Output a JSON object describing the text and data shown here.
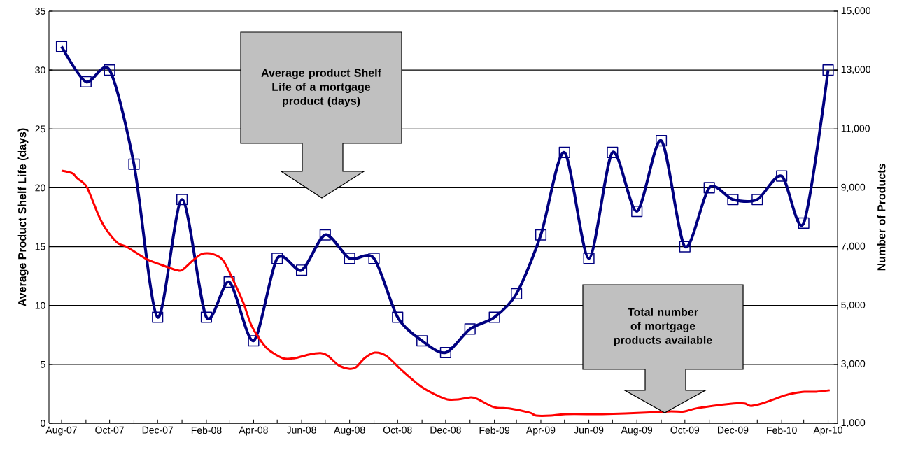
{
  "chart_data": {
    "type": "line",
    "xlabel": null,
    "ylabel": "Average Product Shelf Life (days)",
    "y2label": "Number of Products",
    "xlim": [
      "2007-07-16",
      "2010-04-13"
    ],
    "xticks": [
      {
        "value": "2007-08",
        "label": "Aug-07"
      },
      {
        "value": "2007-09",
        "label": null
      },
      {
        "value": "2007-10",
        "label": "Oct-07"
      },
      {
        "value": "2007-11",
        "label": null
      },
      {
        "value": "2007-12",
        "label": "Dec-07"
      },
      {
        "value": "2008-01",
        "label": null
      },
      {
        "value": "2008-02",
        "label": "Feb-08"
      },
      {
        "value": "2008-03",
        "label": null
      },
      {
        "value": "2008-04",
        "label": "Apr-08"
      },
      {
        "value": "2008-05",
        "label": null
      },
      {
        "value": "2008-06",
        "label": "Jun-08"
      },
      {
        "value": "2008-07",
        "label": null
      },
      {
        "value": "2008-08",
        "label": "Aug-08"
      },
      {
        "value": "2008-09",
        "label": null
      },
      {
        "value": "2008-10",
        "label": "Oct-08"
      },
      {
        "value": "2008-11",
        "label": null
      },
      {
        "value": "2008-12",
        "label": "Dec-08"
      },
      {
        "value": "2009-01",
        "label": null
      },
      {
        "value": "2009-02",
        "label": "Feb-09"
      },
      {
        "value": "2009-03",
        "label": null
      },
      {
        "value": "2009-04",
        "label": "Apr-09"
      },
      {
        "value": "2009-05",
        "label": null
      },
      {
        "value": "2009-06",
        "label": "Jun-09"
      },
      {
        "value": "2009-07",
        "label": null
      },
      {
        "value": "2009-08",
        "label": "Aug-09"
      },
      {
        "value": "2009-09",
        "label": null
      },
      {
        "value": "2009-10",
        "label": "Oct-09"
      },
      {
        "value": "2009-11",
        "label": null
      },
      {
        "value": "2009-12",
        "label": "Dec-09"
      },
      {
        "value": "2010-01",
        "label": null
      },
      {
        "value": "2010-02",
        "label": "Feb-10"
      },
      {
        "value": "2010-03",
        "label": null
      },
      {
        "value": "2010-04",
        "label": "Apr-10"
      }
    ],
    "ylim": [
      0,
      35
    ],
    "yticks": [
      0,
      5,
      10,
      15,
      20,
      25,
      30,
      35
    ],
    "y2lim": [
      1000,
      15000
    ],
    "y2ticks": [
      {
        "value": 1000,
        "label": "1,000"
      },
      {
        "value": 3000,
        "label": "3,000"
      },
      {
        "value": 5000,
        "label": "5,000"
      },
      {
        "value": 7000,
        "label": "7,000"
      },
      {
        "value": 9000,
        "label": "9,000"
      },
      {
        "value": 11000,
        "label": "11,000"
      },
      {
        "value": 13000,
        "label": "13,000"
      },
      {
        "value": 15000,
        "label": "15,000"
      }
    ],
    "grid": "y",
    "series": [
      {
        "color": "#000080",
        "marker": "square",
        "x": [
          "2007-08",
          "2007-09",
          "2007-10",
          "2007-11",
          "2007-12",
          "2008-01",
          "2008-02",
          "2008-03",
          "2008-04",
          "2008-05",
          "2008-06",
          "2008-07",
          "2008-08",
          "2008-09",
          "2008-10",
          "2008-11",
          "2008-12",
          "2009-01",
          "2009-02",
          "2009-03",
          "2009-04",
          "2009-05",
          "2009-06",
          "2009-07",
          "2009-08",
          "2009-09",
          "2009-10",
          "2009-11",
          "2009-12",
          "2010-01",
          "2010-02",
          "2010-03",
          "2010-04"
        ],
        "values": [
          32,
          29,
          30,
          22,
          9,
          19,
          9,
          12,
          7,
          14,
          13,
          16,
          14,
          14,
          9,
          7,
          6,
          8,
          9,
          11,
          16,
          23,
          14,
          23,
          18,
          24,
          15,
          20,
          19,
          19,
          21,
          17,
          30
        ]
      },
      {
        "color": "#ff0000",
        "marker": "none",
        "axis": "y2",
        "x": [
          "2007-08-01",
          "2007-08-15",
          "2007-08-21",
          "2007-09-02",
          "2007-09-17",
          "2007-09-26",
          "2007-10-11",
          "2007-10-23",
          "2007-11-16",
          "2007-12-04",
          "2007-12-24",
          "2008-01-01",
          "2008-01-14",
          "2008-01-26",
          "2008-02-09",
          "2008-02-22",
          "2008-03-06",
          "2008-03-19",
          "2008-03-30",
          "2008-04-17",
          "2008-05-08",
          "2008-05-23",
          "2008-06-10",
          "2008-06-25",
          "2008-07-04",
          "2008-07-18",
          "2008-08-01",
          "2008-08-09",
          "2008-08-20",
          "2008-09-02",
          "2008-09-17",
          "2008-10-07",
          "2008-10-31",
          "2008-11-18",
          "2008-12-03",
          "2008-12-17",
          "2009-01-02",
          "2009-01-10",
          "2009-01-31",
          "2009-02-21",
          "2009-03-18",
          "2009-03-26",
          "2009-04-14",
          "2009-05-02",
          "2009-06-18",
          "2009-07-17",
          "2009-09-09",
          "2009-09-30",
          "2009-10-18",
          "2009-12-02",
          "2009-12-16",
          "2009-12-24",
          "2010-01-07",
          "2010-01-24",
          "2010-02-03",
          "2010-02-17",
          "2010-03-02",
          "2010-03-17",
          "2010-04-03"
        ],
        "values": [
          9580,
          9490,
          9320,
          9030,
          8060,
          7610,
          7130,
          6990,
          6590,
          6400,
          6210,
          6200,
          6510,
          6750,
          6750,
          6540,
          5870,
          5090,
          4280,
          3570,
          3210,
          3210,
          3330,
          3380,
          3300,
          2970,
          2850,
          2900,
          3210,
          3400,
          3280,
          2780,
          2240,
          1970,
          1810,
          1810,
          1880,
          1830,
          1550,
          1500,
          1360,
          1260,
          1260,
          1310,
          1310,
          1330,
          1400,
          1400,
          1520,
          1670,
          1670,
          1590,
          1670,
          1830,
          1930,
          2020,
          2070,
          2070,
          2120
        ]
      }
    ],
    "annotations": [
      "Average product Shelf Life of a mortgage product (days)",
      "Total number of mortgage products available"
    ]
  }
}
